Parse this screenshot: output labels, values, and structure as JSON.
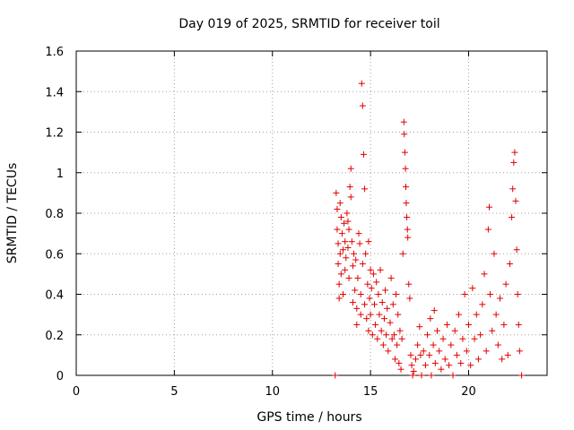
{
  "chart_data": {
    "type": "scatter",
    "title": "Day 019 of 2025, SRMTID for receiver toil",
    "xlabel": "GPS time / hours",
    "ylabel": "SRMTID / TECUs",
    "xlim": [
      0,
      24
    ],
    "ylim": [
      0,
      1.6
    ],
    "xticks": [
      0,
      5,
      10,
      15,
      20
    ],
    "xtick_labels": [
      "0",
      "5",
      "10",
      "15",
      "20"
    ],
    "yticks": [
      0,
      0.2,
      0.4,
      0.6,
      0.8,
      1.0,
      1.2,
      1.4,
      1.6
    ],
    "ytick_labels": [
      "0",
      "0.2",
      "0.4",
      "0.6",
      "0.8",
      "1",
      "1.2",
      "1.4",
      "1.6"
    ],
    "grid": true,
    "marker": "+",
    "color": "#e00000",
    "series": [
      {
        "name": "SRMTID",
        "points": [
          [
            13.2,
            0.0
          ],
          [
            13.25,
            0.9
          ],
          [
            13.3,
            0.82
          ],
          [
            13.3,
            0.72
          ],
          [
            13.35,
            0.65
          ],
          [
            13.35,
            0.55
          ],
          [
            13.4,
            0.45
          ],
          [
            13.4,
            0.38
          ],
          [
            13.45,
            0.85
          ],
          [
            13.45,
            0.6
          ],
          [
            13.5,
            0.78
          ],
          [
            13.5,
            0.5
          ],
          [
            13.55,
            0.7
          ],
          [
            13.6,
            0.62
          ],
          [
            13.6,
            0.4
          ],
          [
            13.65,
            0.75
          ],
          [
            13.7,
            0.66
          ],
          [
            13.7,
            0.52
          ],
          [
            13.75,
            0.58
          ],
          [
            13.8,
            0.8
          ],
          [
            13.85,
            0.76
          ],
          [
            13.85,
            0.63
          ],
          [
            13.9,
            0.72
          ],
          [
            13.9,
            0.48
          ],
          [
            13.95,
            0.93
          ],
          [
            14.0,
            1.02
          ],
          [
            14.0,
            0.88
          ],
          [
            14.05,
            0.66
          ],
          [
            14.1,
            0.54
          ],
          [
            14.1,
            0.36
          ],
          [
            14.15,
            0.6
          ],
          [
            14.2,
            0.42
          ],
          [
            14.25,
            0.57
          ],
          [
            14.3,
            0.33
          ],
          [
            14.3,
            0.25
          ],
          [
            14.35,
            0.48
          ],
          [
            14.4,
            0.7
          ],
          [
            14.45,
            0.65
          ],
          [
            14.5,
            0.4
          ],
          [
            14.5,
            0.3
          ],
          [
            14.55,
            1.44
          ],
          [
            14.6,
            1.33
          ],
          [
            14.6,
            0.55
          ],
          [
            14.65,
            1.09
          ],
          [
            14.7,
            0.92
          ],
          [
            14.7,
            0.35
          ],
          [
            14.75,
            0.6
          ],
          [
            14.8,
            0.28
          ],
          [
            14.85,
            0.45
          ],
          [
            14.9,
            0.66
          ],
          [
            14.9,
            0.22
          ],
          [
            14.95,
            0.38
          ],
          [
            15.0,
            0.52
          ],
          [
            15.0,
            0.3
          ],
          [
            15.05,
            0.43
          ],
          [
            15.1,
            0.2
          ],
          [
            15.15,
            0.5
          ],
          [
            15.2,
            0.35
          ],
          [
            15.25,
            0.25
          ],
          [
            15.3,
            0.46
          ],
          [
            15.35,
            0.18
          ],
          [
            15.4,
            0.4
          ],
          [
            15.45,
            0.3
          ],
          [
            15.5,
            0.52
          ],
          [
            15.55,
            0.22
          ],
          [
            15.6,
            0.36
          ],
          [
            15.65,
            0.15
          ],
          [
            15.7,
            0.28
          ],
          [
            15.75,
            0.42
          ],
          [
            15.8,
            0.2
          ],
          [
            15.85,
            0.33
          ],
          [
            15.9,
            0.12
          ],
          [
            16.0,
            0.26
          ],
          [
            16.05,
            0.48
          ],
          [
            16.1,
            0.18
          ],
          [
            16.15,
            0.35
          ],
          [
            16.2,
            0.2
          ],
          [
            16.25,
            0.08
          ],
          [
            16.3,
            0.4
          ],
          [
            16.35,
            0.15
          ],
          [
            16.4,
            0.3
          ],
          [
            16.45,
            0.06
          ],
          [
            16.5,
            0.22
          ],
          [
            16.55,
            0.03
          ],
          [
            16.6,
            0.18
          ],
          [
            16.65,
            0.6
          ],
          [
            16.7,
            1.25
          ],
          [
            16.72,
            1.19
          ],
          [
            16.75,
            1.1
          ],
          [
            16.78,
            1.02
          ],
          [
            16.8,
            0.93
          ],
          [
            16.82,
            0.85
          ],
          [
            16.85,
            0.78
          ],
          [
            16.88,
            0.72
          ],
          [
            16.9,
            0.68
          ],
          [
            16.95,
            0.45
          ],
          [
            17.0,
            0.38
          ],
          [
            17.05,
            0.1
          ],
          [
            17.1,
            0.05
          ],
          [
            17.15,
            0.0
          ],
          [
            17.2,
            0.02
          ],
          [
            17.3,
            0.08
          ],
          [
            17.4,
            0.15
          ],
          [
            17.5,
            0.24
          ],
          [
            17.55,
            0.1
          ],
          [
            17.6,
            0.0
          ],
          [
            17.7,
            0.12
          ],
          [
            17.8,
            0.05
          ],
          [
            17.9,
            0.2
          ],
          [
            18.0,
            0.1
          ],
          [
            18.05,
            0.28
          ],
          [
            18.1,
            0.0
          ],
          [
            18.2,
            0.15
          ],
          [
            18.25,
            0.32
          ],
          [
            18.3,
            0.06
          ],
          [
            18.4,
            0.22
          ],
          [
            18.5,
            0.12
          ],
          [
            18.6,
            0.03
          ],
          [
            18.7,
            0.18
          ],
          [
            18.8,
            0.08
          ],
          [
            18.9,
            0.25
          ],
          [
            19.0,
            0.05
          ],
          [
            19.1,
            0.15
          ],
          [
            19.2,
            0.0
          ],
          [
            19.3,
            0.22
          ],
          [
            19.4,
            0.1
          ],
          [
            19.5,
            0.3
          ],
          [
            19.6,
            0.06
          ],
          [
            19.7,
            0.18
          ],
          [
            19.8,
            0.4
          ],
          [
            19.9,
            0.12
          ],
          [
            20.0,
            0.25
          ],
          [
            20.1,
            0.05
          ],
          [
            20.2,
            0.43
          ],
          [
            20.3,
            0.18
          ],
          [
            20.4,
            0.3
          ],
          [
            20.5,
            0.08
          ],
          [
            20.6,
            0.2
          ],
          [
            20.7,
            0.35
          ],
          [
            20.8,
            0.5
          ],
          [
            20.9,
            0.12
          ],
          [
            21.0,
            0.72
          ],
          [
            21.05,
            0.83
          ],
          [
            21.1,
            0.4
          ],
          [
            21.2,
            0.22
          ],
          [
            21.3,
            0.6
          ],
          [
            21.4,
            0.3
          ],
          [
            21.5,
            0.15
          ],
          [
            21.6,
            0.38
          ],
          [
            21.7,
            0.08
          ],
          [
            21.8,
            0.25
          ],
          [
            21.9,
            0.45
          ],
          [
            22.0,
            0.1
          ],
          [
            22.1,
            0.55
          ],
          [
            22.2,
            0.78
          ],
          [
            22.25,
            0.92
          ],
          [
            22.3,
            1.05
          ],
          [
            22.35,
            1.1
          ],
          [
            22.4,
            0.86
          ],
          [
            22.45,
            0.62
          ],
          [
            22.5,
            0.4
          ],
          [
            22.55,
            0.25
          ],
          [
            22.6,
            0.12
          ],
          [
            22.7,
            0.0
          ]
        ]
      }
    ]
  }
}
